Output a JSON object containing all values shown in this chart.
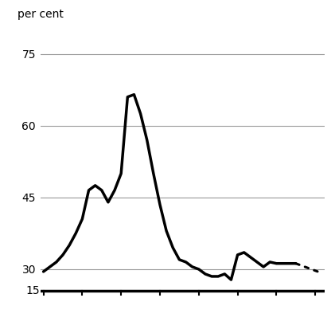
{
  "ylabel": "per cent",
  "yticks": [
    30,
    45,
    60,
    75
  ],
  "ylim": [
    27,
    80
  ],
  "xlim": [
    1979.5,
    2023.5
  ],
  "xticks": [
    1980,
    1986,
    1992,
    1998,
    2004,
    2010,
    2016,
    2022
  ],
  "solid_line": {
    "x": [
      1980,
      1981,
      1982,
      1983,
      1984,
      1985,
      1986,
      1987,
      1988,
      1989,
      1990,
      1991,
      1992,
      1993,
      1994,
      1995,
      1996,
      1997,
      1998,
      1999,
      2000,
      2001,
      2002,
      2003,
      2004,
      2005,
      2006,
      2007,
      2008,
      2009,
      2010,
      2011,
      2012,
      2013,
      2014,
      2015,
      2016,
      2017,
      2018,
      2019
    ],
    "y": [
      29.5,
      30.5,
      31.5,
      33.0,
      35.0,
      37.5,
      40.5,
      46.5,
      47.5,
      46.5,
      44.0,
      46.5,
      50.0,
      66.0,
      66.5,
      62.5,
      57.0,
      50.0,
      43.5,
      38.0,
      34.5,
      32.0,
      31.5,
      30.5,
      30.0,
      29.0,
      28.5,
      28.5,
      29.0,
      27.8,
      33.0,
      33.5,
      32.5,
      31.5,
      30.5,
      31.5,
      31.2,
      31.2,
      31.2,
      31.2
    ]
  },
  "dotted_line": {
    "x": [
      2019,
      2020,
      2021,
      2022,
      2023
    ],
    "y": [
      31.2,
      30.7,
      30.2,
      29.7,
      29.2
    ]
  },
  "line_color": "#000000",
  "grid_color": "#999999",
  "background_color": "#ffffff",
  "bottom_label": "15",
  "bottom_bar_color": "#000000"
}
